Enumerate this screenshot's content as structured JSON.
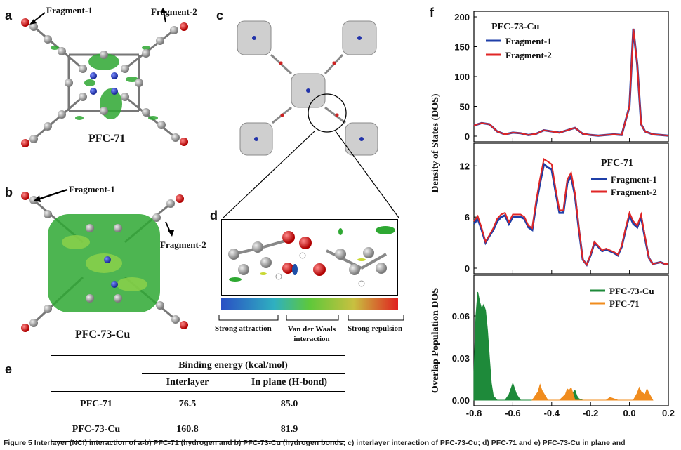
{
  "panels": {
    "a": {
      "letter": "a",
      "title": "PFC-71",
      "frag1": "Fragment-1",
      "frag2": "Fragment-2"
    },
    "b": {
      "letter": "b",
      "title": "PFC-73-Cu",
      "frag1": "Fragment-1",
      "frag2": "Fragment-2"
    },
    "c": {
      "letter": "c"
    },
    "d": {
      "letter": "d",
      "scale_labels": [
        "Strong attraction",
        "Van der Waals\ninteraction",
        "Strong repulsion"
      ]
    },
    "e": {
      "letter": "e",
      "table": {
        "header": "Binding energy (kcal/mol)",
        "columns": [
          "Interlayer",
          "In plane (H-bond)"
        ],
        "rows": [
          {
            "name": "PFC-71",
            "values": [
              "76.5",
              "85.0"
            ]
          },
          {
            "name": "PFC-73-Cu",
            "values": [
              "160.8",
              "81.9"
            ]
          }
        ]
      }
    },
    "f": {
      "letter": "f"
    }
  },
  "chart_data": [
    {
      "type": "line",
      "title": "PFC-73-Cu",
      "ylim": [
        0,
        200
      ],
      "yticks": [
        0,
        50,
        100,
        150,
        200
      ],
      "xlim": [
        -0.8,
        0.2
      ],
      "colors": [
        "#1f3fa8",
        "#e02626"
      ],
      "series": [
        {
          "name": "Fragment-1",
          "x": [
            -0.8,
            -0.76,
            -0.72,
            -0.68,
            -0.64,
            -0.6,
            -0.56,
            -0.52,
            -0.48,
            -0.44,
            -0.4,
            -0.36,
            -0.32,
            -0.28,
            -0.24,
            -0.2,
            -0.16,
            -0.12,
            -0.08,
            -0.04,
            0.0,
            0.02,
            0.04,
            0.06,
            0.08,
            0.12,
            0.16,
            0.2
          ],
          "values": [
            18,
            22,
            20,
            8,
            3,
            6,
            5,
            2,
            4,
            10,
            8,
            6,
            10,
            14,
            4,
            2,
            1,
            2,
            3,
            2,
            50,
            180,
            120,
            20,
            8,
            3,
            2,
            1
          ]
        },
        {
          "name": "Fragment-2",
          "x": [
            -0.8,
            -0.76,
            -0.72,
            -0.68,
            -0.64,
            -0.6,
            -0.56,
            -0.52,
            -0.48,
            -0.44,
            -0.4,
            -0.36,
            -0.32,
            -0.28,
            -0.24,
            -0.2,
            -0.16,
            -0.12,
            -0.08,
            -0.04,
            0.0,
            0.02,
            0.04,
            0.06,
            0.08,
            0.12,
            0.16,
            0.2
          ],
          "values": [
            18,
            22,
            20,
            8,
            3,
            6,
            5,
            2,
            4,
            10,
            8,
            6,
            10,
            14,
            4,
            2,
            1,
            2,
            3,
            2,
            50,
            180,
            120,
            20,
            8,
            3,
            2,
            1
          ]
        }
      ]
    },
    {
      "type": "line",
      "title": "PFC-71",
      "ylim": [
        0,
        14
      ],
      "yticks": [
        0,
        6,
        12
      ],
      "xlim": [
        -0.8,
        0.2
      ],
      "colors": [
        "#1f3fa8",
        "#e02626"
      ],
      "series": [
        {
          "name": "Fragment-1",
          "x": [
            -0.8,
            -0.78,
            -0.76,
            -0.74,
            -0.72,
            -0.7,
            -0.68,
            -0.66,
            -0.64,
            -0.62,
            -0.6,
            -0.58,
            -0.56,
            -0.54,
            -0.52,
            -0.5,
            -0.48,
            -0.46,
            -0.44,
            -0.42,
            -0.4,
            -0.38,
            -0.36,
            -0.34,
            -0.32,
            -0.3,
            -0.28,
            -0.26,
            -0.24,
            -0.22,
            -0.2,
            -0.18,
            -0.16,
            -0.14,
            -0.12,
            -0.1,
            -0.08,
            -0.06,
            -0.04,
            -0.02,
            0.0,
            0.02,
            0.04,
            0.06,
            0.08,
            0.1,
            0.12,
            0.14,
            0.16,
            0.18,
            0.2
          ],
          "values": [
            5.2,
            5.8,
            4.5,
            3.0,
            3.8,
            4.5,
            5.5,
            6.0,
            6.2,
            5.2,
            6.0,
            6.0,
            6.0,
            5.8,
            4.8,
            4.5,
            7.5,
            10,
            12.2,
            11.8,
            11.6,
            9,
            6.5,
            6.5,
            10,
            10.8,
            8.5,
            4.5,
            1.0,
            0.4,
            1.5,
            3.0,
            2.5,
            2.0,
            2.2,
            2.0,
            1.8,
            1.5,
            2.5,
            4.5,
            6.2,
            5.2,
            4.8,
            6.0,
            3.5,
            1.2,
            0.5,
            0.6,
            0.7,
            0.5,
            0.5
          ]
        },
        {
          "name": "Fragment-2",
          "x": [
            -0.8,
            -0.78,
            -0.76,
            -0.74,
            -0.72,
            -0.7,
            -0.68,
            -0.66,
            -0.64,
            -0.62,
            -0.6,
            -0.58,
            -0.56,
            -0.54,
            -0.52,
            -0.5,
            -0.48,
            -0.46,
            -0.44,
            -0.42,
            -0.4,
            -0.38,
            -0.36,
            -0.34,
            -0.32,
            -0.3,
            -0.28,
            -0.26,
            -0.24,
            -0.22,
            -0.2,
            -0.18,
            -0.16,
            -0.14,
            -0.12,
            -0.1,
            -0.08,
            -0.06,
            -0.04,
            -0.02,
            0.0,
            0.02,
            0.04,
            0.06,
            0.08,
            0.1,
            0.12,
            0.14,
            0.16,
            0.18,
            0.2
          ],
          "values": [
            5.5,
            6.1,
            4.7,
            3.1,
            3.9,
            4.7,
            5.8,
            6.3,
            6.5,
            5.4,
            6.3,
            6.3,
            6.3,
            6.0,
            5.0,
            4.7,
            7.9,
            10.5,
            12.8,
            12.5,
            12.2,
            9.4,
            6.8,
            6.8,
            10.4,
            11.2,
            8.8,
            4.7,
            1.0,
            0.4,
            1.6,
            3.1,
            2.6,
            2.1,
            2.3,
            2.1,
            1.9,
            1.6,
            2.6,
            4.7,
            6.5,
            5.5,
            5.0,
            6.3,
            3.7,
            1.2,
            0.5,
            0.6,
            0.7,
            0.5,
            0.5
          ]
        }
      ]
    },
    {
      "type": "area",
      "title": "",
      "ylabel": "Overlap Population DOS",
      "xlabel": "Energy (a. u.)",
      "ylim": [
        0,
        0.085
      ],
      "yticks": [
        0.0,
        0.03,
        0.06
      ],
      "xlim": [
        -0.8,
        0.2
      ],
      "xticks": [
        -0.8,
        -0.6,
        -0.4,
        -0.2,
        0.0,
        0.2
      ],
      "colors": [
        "#1e8a3a",
        "#f08c1e"
      ],
      "series": [
        {
          "name": "PFC-73-Cu",
          "x": [
            -0.8,
            -0.79,
            -0.78,
            -0.77,
            -0.76,
            -0.75,
            -0.74,
            -0.73,
            -0.72,
            -0.71,
            -0.7,
            -0.68,
            -0.64,
            -0.62,
            -0.6,
            -0.58,
            -0.56,
            -0.35,
            -0.33,
            -0.31,
            -0.3,
            -0.28,
            -0.27,
            -0.26,
            -0.24
          ],
          "values": [
            0.02,
            0.06,
            0.077,
            0.07,
            0.065,
            0.068,
            0.064,
            0.05,
            0.03,
            0.012,
            0.003,
            0,
            0,
            0.004,
            0.012,
            0.004,
            0,
            0,
            0.003,
            0.006,
            0.004,
            0.007,
            0.003,
            0.001,
            0
          ]
        },
        {
          "name": "PFC-71",
          "x": [
            -0.5,
            -0.47,
            -0.46,
            -0.45,
            -0.42,
            -0.36,
            -0.33,
            -0.32,
            -0.31,
            -0.3,
            -0.28,
            -0.12,
            -0.1,
            -0.06,
            0.02,
            0.04,
            0.05,
            0.06,
            0.08,
            0.09,
            0.1,
            0.12
          ],
          "values": [
            0,
            0.006,
            0.011,
            0.007,
            0,
            0,
            0.004,
            0.008,
            0.007,
            0.009,
            0,
            0,
            0.002,
            0,
            0,
            0.005,
            0.009,
            0.006,
            0.004,
            0.008,
            0.005,
            0
          ]
        }
      ]
    }
  ],
  "chart_f": {
    "ylabel_top": "Density of States (DOS)",
    "legend_top": [
      "Fragment-1",
      "Fragment-2"
    ],
    "legend_mid": [
      "Fragment-1",
      "Fragment-2"
    ],
    "legend_bottom": [
      "PFC-73-Cu",
      "PFC-71"
    ]
  },
  "caption": "Figure 5 Interlayer (NCI) interaction of a-b) PFC-71 (hydrogen and b) PFC-73-Cu (hydrogen bonds; c) interlayer interaction of PFC-73-Cu; d) PFC-71 and e) PFC-73-Cu in plane and"
}
